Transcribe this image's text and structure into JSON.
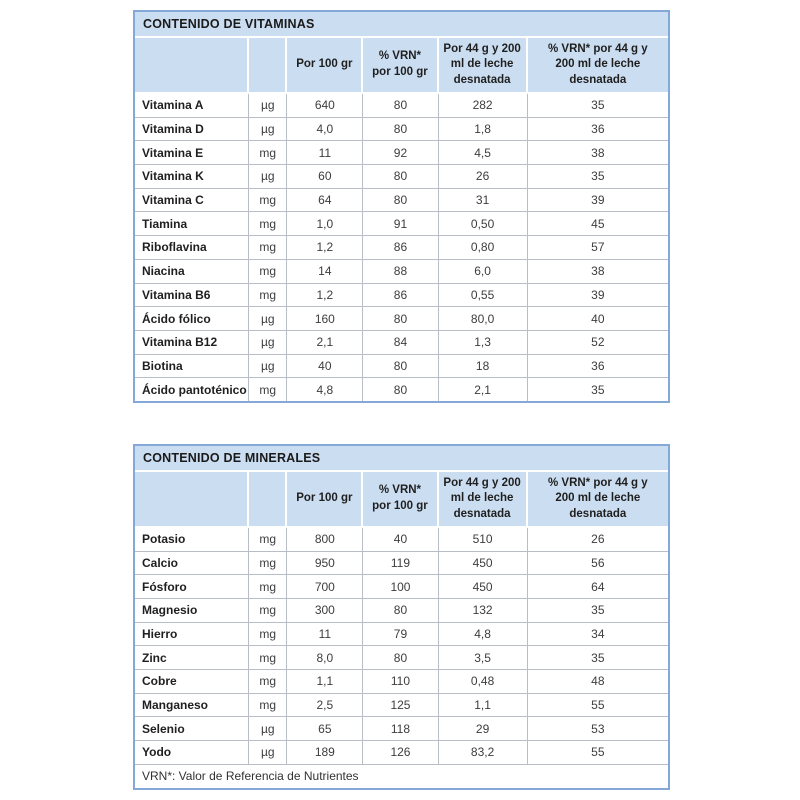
{
  "colors": {
    "header_fill": "#cbddf1",
    "outer_border": "#84a9d9",
    "grid_line": "#b8bdc6",
    "title_text": "#1a1a1a",
    "value_text": "#3d3d3d"
  },
  "tables": [
    {
      "title": "CONTENIDO DE VITAMINAS",
      "column_headers": {
        "name": "",
        "unit": "",
        "per100": "Por 100 gr",
        "vrn100": "% VRN* por 100 gr",
        "per200": "Por 44 g y 200 ml de leche desnatada",
        "vrn200": "% VRN* por 44 g y 200 ml de leche desnatada"
      },
      "rows": [
        {
          "name": "Vitamina A",
          "unit": "µg",
          "per100": "640",
          "vrn100": "80",
          "per200": "282",
          "vrn200": "35"
        },
        {
          "name": "Vitamina D",
          "unit": "µg",
          "per100": "4,0",
          "vrn100": "80",
          "per200": "1,8",
          "vrn200": "36"
        },
        {
          "name": "Vitamina E",
          "unit": "mg",
          "per100": "11",
          "vrn100": "92",
          "per200": "4,5",
          "vrn200": "38"
        },
        {
          "name": "Vitamina K",
          "unit": "µg",
          "per100": "60",
          "vrn100": "80",
          "per200": "26",
          "vrn200": "35"
        },
        {
          "name": "Vitamina C",
          "unit": "mg",
          "per100": "64",
          "vrn100": "80",
          "per200": "31",
          "vrn200": "39"
        },
        {
          "name": "Tiamina",
          "unit": "mg",
          "per100": "1,0",
          "vrn100": "91",
          "per200": "0,50",
          "vrn200": "45"
        },
        {
          "name": "Riboflavina",
          "unit": "mg",
          "per100": "1,2",
          "vrn100": "86",
          "per200": "0,80",
          "vrn200": "57"
        },
        {
          "name": "Niacina",
          "unit": "mg",
          "per100": "14",
          "vrn100": "88",
          "per200": "6,0",
          "vrn200": "38"
        },
        {
          "name": "Vitamina B6",
          "unit": "mg",
          "per100": "1,2",
          "vrn100": "86",
          "per200": "0,55",
          "vrn200": "39"
        },
        {
          "name": "Ácido fólico",
          "unit": "µg",
          "per100": "160",
          "vrn100": "80",
          "per200": "80,0",
          "vrn200": "40"
        },
        {
          "name": "Vitamina B12",
          "unit": "µg",
          "per100": "2,1",
          "vrn100": "84",
          "per200": "1,3",
          "vrn200": "52"
        },
        {
          "name": "Biotina",
          "unit": "µg",
          "per100": "40",
          "vrn100": "80",
          "per200": "18",
          "vrn200": "36"
        },
        {
          "name": "Ácido pantoténico",
          "unit": "mg",
          "per100": "4,8",
          "vrn100": "80",
          "per200": "2,1",
          "vrn200": "35"
        }
      ]
    },
    {
      "title": "CONTENIDO DE MINERALES",
      "column_headers": {
        "name": "",
        "unit": "",
        "per100": "Por 100 gr",
        "vrn100": "% VRN* por 100 gr",
        "per200": "Por 44 g y 200 ml de leche desnatada",
        "vrn200": "% VRN* por 44 g y 200 ml de leche desnatada"
      },
      "rows": [
        {
          "name": "Potasio",
          "unit": "mg",
          "per100": "800",
          "vrn100": "40",
          "per200": "510",
          "vrn200": "26"
        },
        {
          "name": "Calcio",
          "unit": "mg",
          "per100": "950",
          "vrn100": "119",
          "per200": "450",
          "vrn200": "56"
        },
        {
          "name": "Fósforo",
          "unit": "mg",
          "per100": "700",
          "vrn100": "100",
          "per200": "450",
          "vrn200": "64"
        },
        {
          "name": "Magnesio",
          "unit": "mg",
          "per100": "300",
          "vrn100": "80",
          "per200": "132",
          "vrn200": "35"
        },
        {
          "name": "Hierro",
          "unit": "mg",
          "per100": "11",
          "vrn100": "79",
          "per200": "4,8",
          "vrn200": "34"
        },
        {
          "name": "Zinc",
          "unit": "mg",
          "per100": "8,0",
          "vrn100": "80",
          "per200": "3,5",
          "vrn200": "35"
        },
        {
          "name": "Cobre",
          "unit": "mg",
          "per100": "1,1",
          "vrn100": "110",
          "per200": "0,48",
          "vrn200": "48"
        },
        {
          "name": "Manganeso",
          "unit": "mg",
          "per100": "2,5",
          "vrn100": "125",
          "per200": "1,1",
          "vrn200": "55"
        },
        {
          "name": "Selenio",
          "unit": "µg",
          "per100": "65",
          "vrn100": "118",
          "per200": "29",
          "vrn200": "53"
        },
        {
          "name": "Yodo",
          "unit": "µg",
          "per100": "189",
          "vrn100": "126",
          "per200": "83,2",
          "vrn200": "55"
        }
      ],
      "footer_note": "VRN*: Valor de Referencia de Nutrientes"
    }
  ]
}
